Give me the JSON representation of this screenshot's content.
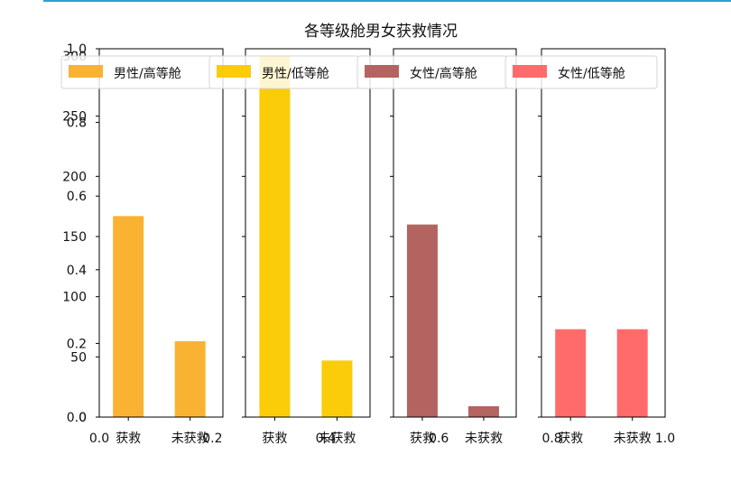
{
  "chart_data": {
    "type": "bar",
    "title": "各等级舱男女获救情况",
    "categories": [
      "获救",
      "未获救"
    ],
    "overlay_axis": {
      "ticks": [
        "0.0",
        "0.2",
        "0.4",
        "0.6",
        "0.8",
        "1.0"
      ],
      "xlim": [
        0,
        1
      ],
      "ylim": [
        0,
        1
      ]
    },
    "ylim": [
      0,
      306
    ],
    "y_ticks": [
      0,
      50,
      100,
      150,
      200,
      250,
      300
    ],
    "series": [
      {
        "name": "男性/高等舱",
        "color": "#FAB232",
        "values": [
          167,
          63
        ]
      },
      {
        "name": "男性/低等舱",
        "color": "#FACC0A",
        "values": [
          300,
          47
        ]
      },
      {
        "name": "女性/高等舱",
        "color": "#B46460",
        "values": [
          160,
          9
        ]
      },
      {
        "name": "女性/低等舱",
        "color": "#FF6B6B",
        "values": [
          73,
          73
        ]
      }
    ],
    "legend_position": "top"
  }
}
